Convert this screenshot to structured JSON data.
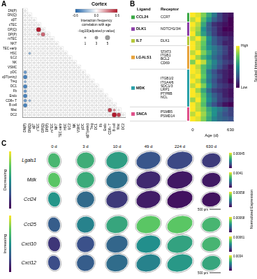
{
  "chart_data": [
    {
      "panel": "A",
      "type": "bubble_matrix",
      "title": "Cortex",
      "cell_types": [
        "DN(P)",
        "DN(Q)",
        "αβT",
        "cTEC",
        "DP(Q)",
        "DP(P)",
        "mTEC",
        "NKT",
        "TEC early",
        "HSC",
        "ILC2",
        "NK",
        "VSMC",
        "pDC",
        "αβT(entry)",
        "Treg",
        "DC1",
        "Fb",
        "Endo",
        "CD8+ T",
        "B cell",
        "Mac",
        "DC2"
      ],
      "correlation": [
        [
          0
        ],
        [
          0,
          0
        ],
        [
          0,
          0,
          0
        ],
        [
          0,
          0,
          0,
          0
        ],
        [
          0,
          0,
          0,
          0.6,
          0
        ],
        [
          0,
          0,
          0,
          0.2,
          0.4,
          0
        ],
        [
          0,
          0,
          0,
          0,
          0,
          0,
          0
        ],
        [
          0,
          0,
          0,
          0,
          0,
          0,
          0,
          0
        ],
        [
          0,
          0,
          0,
          0,
          0,
          0,
          0,
          0,
          0
        ],
        [
          0,
          -0.3,
          0,
          0,
          0,
          0,
          0,
          0,
          0,
          0
        ],
        [
          0,
          0,
          0,
          0,
          0,
          0,
          0,
          0,
          0,
          0,
          0
        ],
        [
          0,
          0,
          0,
          0,
          0,
          0,
          0,
          0,
          0,
          0,
          0,
          0
        ],
        [
          0,
          0,
          0,
          0,
          0,
          0,
          0,
          0,
          0,
          0,
          0,
          0,
          0
        ],
        [
          -0.4,
          0,
          0,
          0,
          0,
          0,
          0,
          0,
          0,
          0,
          0,
          0,
          0,
          0
        ],
        [
          -0.5,
          0,
          0,
          0,
          0,
          0,
          0,
          0,
          0,
          0,
          0,
          0,
          0,
          0,
          0
        ],
        [
          -0.3,
          0,
          0,
          0,
          0,
          0,
          0,
          0,
          0,
          0,
          0,
          0,
          0,
          0,
          0,
          0
        ],
        [
          -0.5,
          0,
          0,
          0,
          0,
          0,
          0,
          0,
          0,
          0,
          0,
          0,
          0,
          0,
          0,
          0,
          0
        ],
        [
          -0.4,
          0,
          0,
          0,
          0,
          0,
          0,
          0,
          0,
          0,
          0,
          0,
          0,
          0,
          0,
          0,
          0,
          0
        ],
        [
          -0.5,
          0,
          0,
          0,
          0,
          0,
          0,
          0,
          0,
          0,
          0,
          0,
          0,
          0,
          0,
          0,
          0,
          0,
          0
        ],
        [
          -0.4,
          -0.3,
          0,
          0,
          0,
          0,
          0,
          0,
          0,
          0,
          0,
          0,
          0,
          0,
          0,
          0,
          0,
          0,
          0,
          0
        ],
        [
          -0.5,
          0,
          0,
          0,
          0,
          0,
          0,
          0,
          0,
          0,
          0,
          0,
          0,
          0,
          0,
          0,
          0,
          0,
          0,
          0,
          0
        ],
        [
          0,
          0,
          0,
          0,
          0,
          0,
          0,
          0,
          0,
          0,
          0,
          0,
          0,
          0,
          0,
          0,
          0,
          0,
          0,
          0.5,
          0.3,
          0
        ],
        [
          0,
          0,
          0,
          0,
          0,
          0,
          0,
          0,
          0,
          0,
          0,
          0,
          0,
          0,
          0,
          0,
          0,
          0,
          0,
          0,
          0.6,
          0.5,
          0
        ]
      ],
      "neg_log10_p": [
        [
          1
        ],
        [
          1,
          1
        ],
        [
          1,
          1,
          1
        ],
        [
          1,
          1,
          1,
          1
        ],
        [
          1,
          1,
          1,
          5,
          1
        ],
        [
          1,
          1,
          1,
          2,
          4,
          1
        ],
        [
          1,
          1,
          1,
          1,
          1,
          1,
          1
        ],
        [
          1,
          1,
          1,
          1,
          1,
          1,
          1,
          1
        ],
        [
          1,
          1,
          1,
          1,
          1,
          1,
          1,
          1,
          1
        ],
        [
          1,
          2,
          1,
          1,
          1,
          1,
          1,
          1,
          1,
          1
        ],
        [
          1,
          1,
          1,
          1,
          1,
          1,
          1,
          1,
          1,
          1,
          1
        ],
        [
          1,
          1,
          1,
          1,
          1,
          1,
          1,
          1,
          1,
          1,
          1,
          1
        ],
        [
          1,
          1,
          1,
          1,
          1,
          1,
          1,
          1,
          1,
          1,
          1,
          1,
          1
        ],
        [
          3,
          1,
          1,
          1,
          1,
          1,
          1,
          1,
          1,
          1,
          1,
          1,
          1,
          1
        ],
        [
          4,
          1,
          1,
          1,
          1,
          1,
          1,
          1,
          1,
          1,
          1,
          1,
          1,
          1,
          1
        ],
        [
          2,
          1,
          1,
          1,
          1,
          1,
          1,
          1,
          1,
          1,
          1,
          1,
          1,
          1,
          1,
          1
        ],
        [
          4,
          1,
          1,
          1,
          1,
          1,
          1,
          1,
          1,
          1,
          1,
          1,
          1,
          1,
          1,
          1,
          1
        ],
        [
          3,
          1,
          1,
          1,
          1,
          1,
          1,
          1,
          1,
          1,
          1,
          1,
          1,
          1,
          1,
          1,
          1,
          1
        ],
        [
          4,
          1,
          1,
          1,
          1,
          1,
          1,
          1,
          1,
          1,
          1,
          1,
          1,
          1,
          1,
          1,
          1,
          1,
          1
        ],
        [
          3,
          2,
          1,
          1,
          1,
          1,
          1,
          1,
          1,
          1,
          1,
          1,
          1,
          1,
          1,
          1,
          1,
          1,
          1,
          1
        ],
        [
          4,
          1,
          1,
          1,
          1,
          1,
          1,
          1,
          1,
          1,
          1,
          1,
          1,
          1,
          1,
          1,
          1,
          1,
          1,
          1,
          1
        ],
        [
          1,
          1,
          1,
          1,
          1,
          1,
          1,
          1,
          1,
          1,
          1,
          1,
          1,
          1,
          1,
          1,
          1,
          1,
          1,
          4,
          2,
          1
        ],
        [
          1,
          1,
          1,
          1,
          1,
          1,
          1,
          1,
          1,
          1,
          1,
          1,
          1,
          1,
          1,
          1,
          1,
          1,
          1,
          1,
          5,
          4,
          1
        ]
      ],
      "colorbar": {
        "label": "Interaction frequency correlation with age",
        "range": [
          -0.6,
          0.6
        ],
        "ticks": [
          {
            "value": -0.6,
            "label": "-0.6"
          },
          {
            "value": 0,
            "label": "0.0"
          },
          0.6
        ]
      },
      "size_legend": {
        "label": "−log10(adjusted p-value)",
        "values": [
          1,
          3,
          5
        ]
      }
    },
    {
      "panel": "B",
      "type": "heatmap",
      "x_label": "Age (d)",
      "categories": [
        "0",
        null,
        null,
        null,
        null,
        null,
        null,
        "630"
      ],
      "headers": [
        "Ligand",
        "Receptor"
      ],
      "groups": [
        {
          "ligand": "CCL24",
          "color": "#3aa845",
          "receptors": [
            "CCR7"
          ],
          "values": [
            [
              1,
              0.95,
              0.8,
              0.6,
              0.4,
              0.2,
              0.1,
              0.05
            ],
            [
              0.9,
              1,
              0.7,
              0.5,
              0.3,
              0.2,
              0.1,
              0
            ]
          ]
        },
        {
          "ligand": "DLK1",
          "color": "#8b3fa8",
          "receptors": [
            "NOTCH1/3/4"
          ],
          "values": [
            [
              1,
              0.9,
              0.6,
              0.3,
              0.15,
              0.1,
              0.05,
              0
            ],
            [
              0.95,
              0.85,
              0.5,
              0.3,
              0.2,
              0.1,
              0,
              0
            ],
            [
              1,
              0.8,
              0.55,
              0.35,
              0.2,
              0.1,
              0.05,
              0.05
            ]
          ]
        },
        {
          "ligand": "IL7",
          "color": "#b5c83a",
          "receptors": [
            "DLK1"
          ],
          "values": [
            [
              0.9,
              1,
              0.8,
              0.5,
              0.3,
              0.2,
              0.15,
              0.1
            ],
            [
              1,
              0.9,
              0.75,
              0.45,
              0.3,
              0.2,
              0.1,
              0.1
            ]
          ]
        },
        {
          "ligand": "LGALS1",
          "color": "#e8a33a",
          "receptors": [
            "STAT3",
            "ITGB1",
            "BCL2",
            "CD69"
          ],
          "values": [
            [
              1,
              0.9,
              0.7,
              0.5,
              0.4,
              0.3,
              0.2,
              0.1
            ],
            [
              0.9,
              1,
              0.8,
              0.6,
              0.4,
              0.3,
              0.2,
              0.1
            ],
            [
              1,
              0.85,
              0.65,
              0.5,
              0.35,
              0.25,
              0.15,
              0.1
            ],
            [
              0.8,
              1,
              0.9,
              0.6,
              0.45,
              0.3,
              0.2,
              0.15
            ],
            [
              1,
              0.9,
              0.7,
              0.55,
              0.4,
              0.25,
              0.15,
              0.05
            ]
          ]
        },
        {
          "ligand": "MDK",
          "color": "#2aa0a8",
          "receptors": [
            "ITGB1/2",
            "ITGA4/6",
            "SDC1/3",
            "LRP1",
            "PTPRB",
            "NCL"
          ],
          "values": [
            [
              1,
              0.95,
              0.7,
              0.4,
              0.25,
              0.15,
              0.1,
              0.05
            ],
            [
              0.95,
              1,
              0.75,
              0.45,
              0.3,
              0.2,
              0.1,
              0.05
            ],
            [
              1,
              0.9,
              0.65,
              0.4,
              0.25,
              0.15,
              0.1,
              0
            ],
            [
              0.9,
              1,
              0.8,
              0.5,
              0.3,
              0.2,
              0.15,
              0.1
            ],
            [
              1,
              0.85,
              0.6,
              0.35,
              0.2,
              0.15,
              0.1,
              0.05
            ],
            [
              1,
              0.95,
              0.7,
              0.45,
              0.3,
              0.2,
              0.1,
              0.05
            ],
            [
              0.85,
              1,
              0.75,
              0.5,
              0.35,
              0.2,
              0.15,
              0.1
            ],
            [
              1,
              0.9,
              0.7,
              0.4,
              0.25,
              0.15,
              0.05,
              0
            ]
          ]
        },
        {
          "ligand": "SNCA",
          "color": "#e0508a",
          "receptors": [
            "PSMB5",
            "PSMD14"
          ],
          "values": [
            [
              1,
              0.9,
              0.8,
              0.6,
              0.5,
              0.4,
              0.3,
              0.2
            ],
            [
              0.9,
              1,
              0.85,
              0.65,
              0.5,
              0.35,
              0.25,
              0.2
            ],
            [
              1,
              0.95,
              0.8,
              0.6,
              0.45,
              0.35,
              0.3,
              0.25
            ]
          ]
        }
      ],
      "colorbar": {
        "label": "Scaled Interaction",
        "range": [
          0,
          1
        ],
        "ticks": [
          {
            "value": 1,
            "label": "High"
          },
          {
            "value": 0,
            "label": "Low"
          }
        ]
      }
    },
    {
      "panel": "C",
      "type": "spatial_expression",
      "ages": [
        "0 d",
        "3 d",
        "10 d",
        "49 d",
        "224 d",
        "630 d"
      ],
      "colorbar_label": "Normalized Expression",
      "scale_bar": "500 µm",
      "groups": [
        {
          "label": "Decreasing",
          "genes": [
            {
              "name": "Lgals1",
              "colorbar_range": [
                0,
                0.00045
              ],
              "values": [
                0.0003,
                0.00028,
                0.00025,
                0.00012,
                0.0001,
                8e-05
              ]
            },
            {
              "name": "Mdk",
              "colorbar_range": [
                0,
                0.0041
              ],
              "values": [
                0.003,
                0.0025,
                0.0015,
                0.0005,
                0.0003,
                0.0003
              ]
            },
            {
              "name": "Ccl24",
              "colorbar_range": [
                0,
                0.00058
              ],
              "values": [
                0.0003,
                0.0002,
                0.0001,
                5e-05,
                3e-05,
                3e-05
              ]
            }
          ]
        },
        {
          "label": "Increasing",
          "genes": [
            {
              "name": "Ccl25",
              "colorbar_range": [
                0,
                0.00068
              ],
              "values": [
                0.0002,
                0.0003,
                0.0004,
                0.0005,
                0.0005,
                0.00045
              ]
            },
            {
              "name": "Cxcl10",
              "colorbar_range": [
                0,
                0.00061
              ],
              "values": [
                0.0001,
                0.00015,
                0.0002,
                0.0003,
                0.00035,
                0.0004
              ]
            },
            {
              "name": "Cxcl12",
              "colorbar_range": [
                0,
                0.0034
              ],
              "values": [
                0.0008,
                0.001,
                0.0012,
                0.0015,
                0.0018,
                0.002
              ]
            }
          ]
        }
      ]
    }
  ]
}
